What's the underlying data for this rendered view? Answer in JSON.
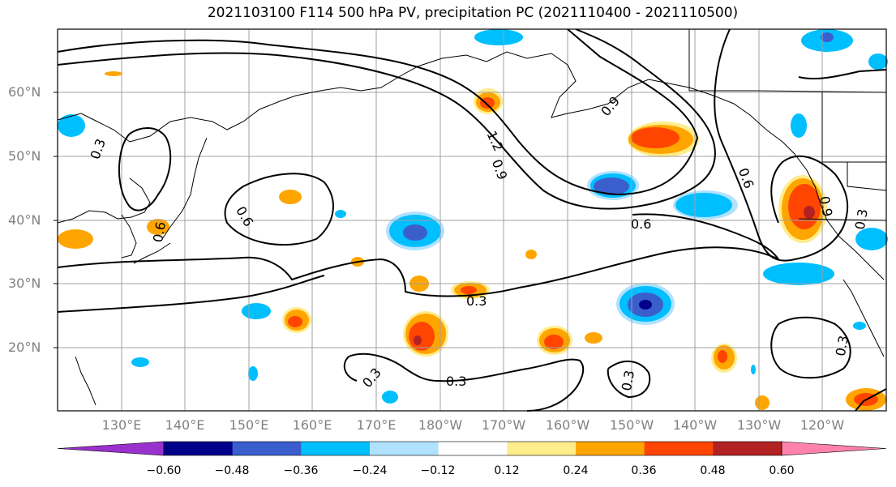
{
  "title": "2021103100 F114 500 hPa PV, precipitation PC (2021110400 - 2021110500)",
  "lat_labels": [
    "60°N",
    "50°N",
    "40°N",
    "30°N",
    "20°N"
  ],
  "lon_labels": [
    "130°E",
    "140°E",
    "150°E",
    "160°E",
    "170°E",
    "180°W",
    "170°W",
    "160°W",
    "150°W",
    "140°W",
    "130°W",
    "120°W"
  ],
  "contour_labels": [
    "0.3",
    "0.6",
    "0.9",
    "1.2",
    "0.6",
    "0.9",
    "0.6",
    "0.9",
    "0.3",
    "0.6",
    "0.3",
    "0.3",
    "0.3",
    "0.3",
    "0.3"
  ],
  "colorbar": {
    "ticks": [
      "−0.60",
      "−0.48",
      "−0.36",
      "−0.24",
      "−0.12",
      "0.12",
      "0.24",
      "0.36",
      "0.48",
      "0.60"
    ],
    "colors": [
      "#9932cc",
      "#00008b",
      "#3a5fcd",
      "#00bfff",
      "#b0e2ff",
      "#ffffff",
      "#ffec8b",
      "#ffa500",
      "#ff4500",
      "#b22222",
      "#ff82ab"
    ]
  }
}
